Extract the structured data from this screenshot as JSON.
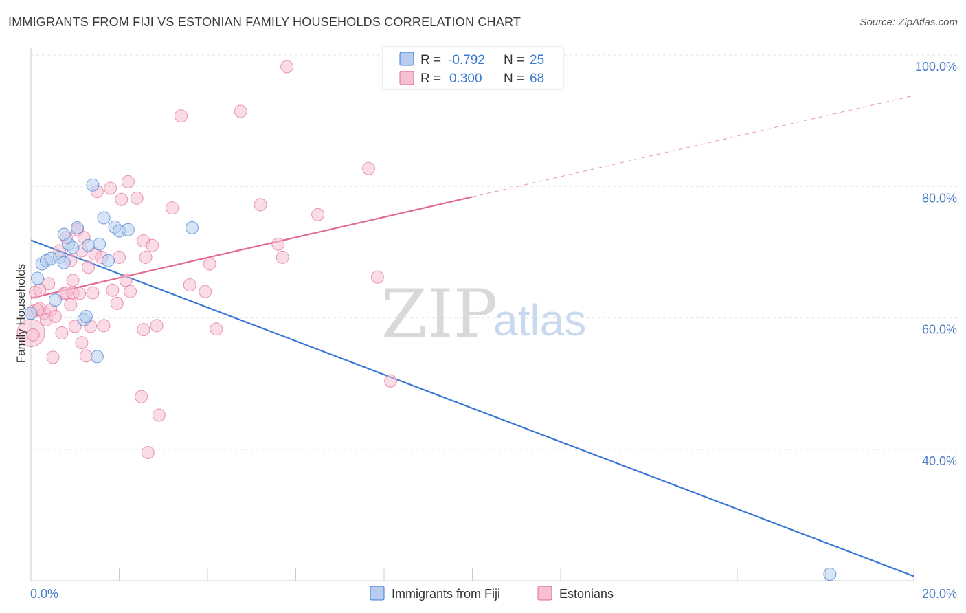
{
  "title": "IMMIGRANTS FROM FIJI VS ESTONIAN FAMILY HOUSEHOLDS CORRELATION CHART",
  "source": "Source: ZipAtlas.com",
  "watermark": {
    "zip": "ZIP",
    "atlas": "atlas"
  },
  "colors": {
    "fiji": "#3b78d4",
    "fiji_fill": "#b7cdef",
    "estonian": "#e26a91",
    "estonian_fill": "#f5c0d2",
    "tick": "#4a7cc7"
  },
  "legend": {
    "fiji": {
      "r_label": "R = ",
      "r_value": "-0.792",
      "n_label": "N = ",
      "n_value": "25"
    },
    "estonian": {
      "r_label": "R = ",
      "r_value": "0.300",
      "n_label": "N = ",
      "n_value": "68"
    }
  },
  "chart_data": {
    "type": "scatter",
    "title": "IMMIGRANTS FROM FIJI VS ESTONIAN FAMILY HOUSEHOLDS CORRELATION CHART",
    "xlabel": "",
    "ylabel": "Family Households",
    "xlim": [
      0,
      20
    ],
    "ylim": [
      22,
      102
    ],
    "x_tick_labels": [
      "0.0%",
      "20.0%"
    ],
    "y_ticks": [
      40,
      60,
      80,
      100
    ],
    "y_tick_labels": [
      "40.0%",
      "60.0%",
      "80.0%",
      "100.0%"
    ],
    "series": [
      {
        "name": "Immigrants from Fiji",
        "color": "#3b78d4",
        "points": [
          [
            0.0,
            62.5
          ],
          [
            0.15,
            67.8
          ],
          [
            0.25,
            70.0
          ],
          [
            0.35,
            70.5
          ],
          [
            0.45,
            70.8
          ],
          [
            0.55,
            64.5
          ],
          [
            0.65,
            71.0
          ],
          [
            0.75,
            70.2
          ],
          [
            0.75,
            74.5
          ],
          [
            0.85,
            73.0
          ],
          [
            0.95,
            72.5
          ],
          [
            1.05,
            75.5
          ],
          [
            1.2,
            61.5
          ],
          [
            1.25,
            62.0
          ],
          [
            1.3,
            72.8
          ],
          [
            1.4,
            82.0
          ],
          [
            1.5,
            55.9
          ],
          [
            1.55,
            73.0
          ],
          [
            1.65,
            77.0
          ],
          [
            1.75,
            70.5
          ],
          [
            1.9,
            75.6
          ],
          [
            2.0,
            75.0
          ],
          [
            2.2,
            75.2
          ],
          [
            3.65,
            75.5
          ],
          [
            18.1,
            22.8
          ]
        ],
        "trend": {
          "x": [
            0,
            20
          ],
          "y": [
            73.6,
            22.5
          ],
          "style": "solid"
        }
      },
      {
        "name": "Estonians",
        "color": "#e26a91",
        "points": [
          [
            0.0,
            59.5
          ],
          [
            0.05,
            62.8
          ],
          [
            0.1,
            65.7
          ],
          [
            0.2,
            63.2
          ],
          [
            0.3,
            62.5
          ],
          [
            0.35,
            61.5
          ],
          [
            0.4,
            67.0
          ],
          [
            0.45,
            63.0
          ],
          [
            0.5,
            55.8
          ],
          [
            0.55,
            62.0
          ],
          [
            0.65,
            72.0
          ],
          [
            0.7,
            59.5
          ],
          [
            0.75,
            65.5
          ],
          [
            0.8,
            74.0
          ],
          [
            0.8,
            65.6
          ],
          [
            0.9,
            70.5
          ],
          [
            0.9,
            63.8
          ],
          [
            0.95,
            67.5
          ],
          [
            0.95,
            65.6
          ],
          [
            1.0,
            60.5
          ],
          [
            1.05,
            75.2
          ],
          [
            1.1,
            65.5
          ],
          [
            1.15,
            72.0
          ],
          [
            1.15,
            58.0
          ],
          [
            1.2,
            74.0
          ],
          [
            1.25,
            56.0
          ],
          [
            1.3,
            69.5
          ],
          [
            1.35,
            60.5
          ],
          [
            1.4,
            65.6
          ],
          [
            1.45,
            71.5
          ],
          [
            1.5,
            81.0
          ],
          [
            1.6,
            71.0
          ],
          [
            1.65,
            60.6
          ],
          [
            1.8,
            81.5
          ],
          [
            1.85,
            66.0
          ],
          [
            1.95,
            64.0
          ],
          [
            2.0,
            71.0
          ],
          [
            2.05,
            79.8
          ],
          [
            2.15,
            67.5
          ],
          [
            2.2,
            82.5
          ],
          [
            2.25,
            65.8
          ],
          [
            2.4,
            80.0
          ],
          [
            2.55,
            60.0
          ],
          [
            2.55,
            73.5
          ],
          [
            2.6,
            71.0
          ],
          [
            2.75,
            72.8
          ],
          [
            2.85,
            60.6
          ],
          [
            3.2,
            78.5
          ],
          [
            3.4,
            92.5
          ],
          [
            3.6,
            66.8
          ],
          [
            3.95,
            65.8
          ],
          [
            4.05,
            70.0
          ],
          [
            4.2,
            60.1
          ],
          [
            4.75,
            93.2
          ],
          [
            5.2,
            79.0
          ],
          [
            5.6,
            73.0
          ],
          [
            5.7,
            71.0
          ],
          [
            5.8,
            100.0
          ],
          [
            6.5,
            77.5
          ],
          [
            7.65,
            84.5
          ],
          [
            7.85,
            68.0
          ],
          [
            8.15,
            52.2
          ],
          [
            2.5,
            49.8
          ],
          [
            2.9,
            47.0
          ],
          [
            2.65,
            41.3
          ],
          [
            0.15,
            63.0
          ],
          [
            0.05,
            59.2
          ],
          [
            0.2,
            66.0
          ]
        ],
        "trend": {
          "x": [
            0,
            10
          ],
          "y": [
            64.8,
            80.2
          ],
          "style": "solid",
          "dashed_extension": {
            "x": [
              10,
              20
            ],
            "y": [
              80.2,
              95.6
            ]
          }
        }
      }
    ],
    "legend": [
      "Immigrants from Fiji",
      "Estonians"
    ]
  }
}
